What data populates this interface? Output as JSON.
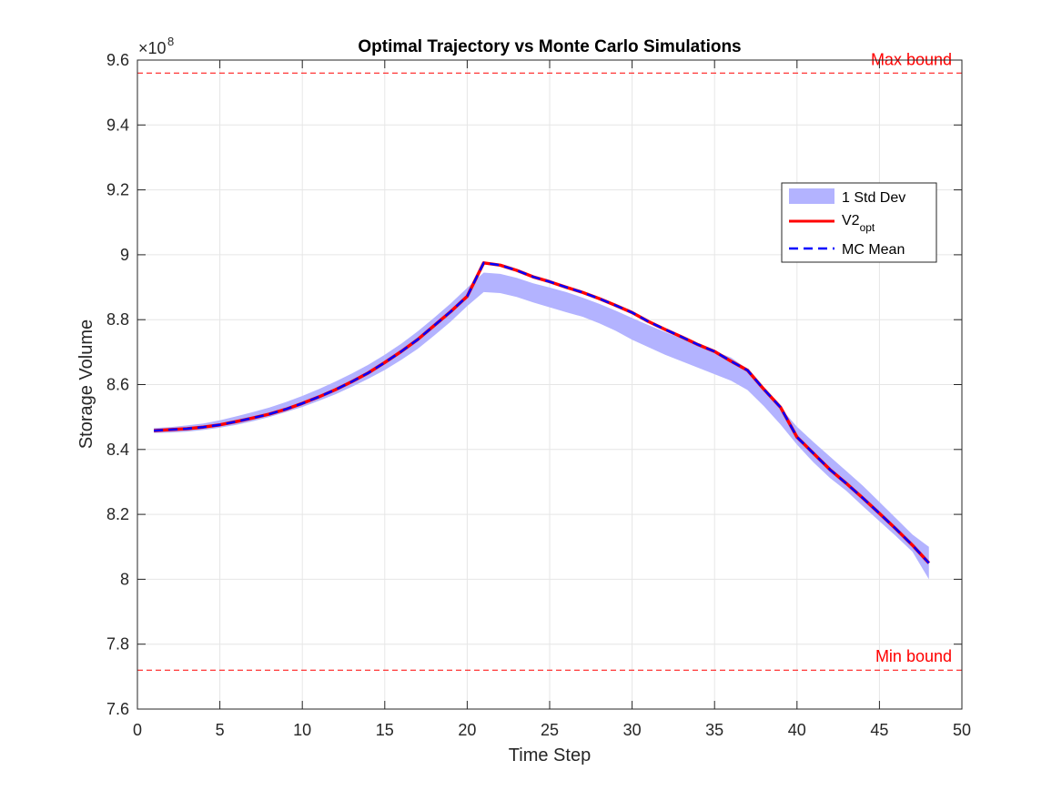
{
  "chart_data": {
    "type": "line",
    "title": "Optimal Trajectory vs Monte Carlo Simulations",
    "xlabel": "Time Step",
    "ylabel": "Storage Volume",
    "exponent_label": {
      "base": "×10",
      "power": "8"
    },
    "xlim": [
      0,
      50
    ],
    "ylim": [
      7.6,
      9.6
    ],
    "xticks": [
      0,
      5,
      10,
      15,
      20,
      25,
      30,
      35,
      40,
      45,
      50
    ],
    "yticks": [
      7.6,
      7.8,
      8,
      8.2,
      8.4,
      8.6,
      8.8,
      9,
      9.2,
      9.4,
      9.6
    ],
    "ytick_labels": [
      "7.6",
      "7.8",
      "8",
      "8.2",
      "8.4",
      "8.6",
      "8.8",
      "9",
      "9.2",
      "9.4",
      "9.6"
    ],
    "grid": true,
    "legend_position": "right",
    "x": [
      1,
      2,
      3,
      4,
      5,
      6,
      7,
      8,
      9,
      10,
      11,
      12,
      13,
      14,
      15,
      16,
      17,
      18,
      19,
      20,
      21,
      22,
      23,
      24,
      25,
      26,
      27,
      28,
      29,
      30,
      31,
      32,
      33,
      34,
      35,
      36,
      37,
      38,
      39,
      40,
      41,
      42,
      43,
      44,
      45,
      46,
      47,
      48
    ],
    "series": [
      {
        "name": "1 Std Dev",
        "kind": "band",
        "color": "#b3b3ff",
        "lower": [
          8.451,
          8.452,
          8.455,
          8.46,
          8.467,
          8.476,
          8.487,
          8.5,
          8.515,
          8.531,
          8.55,
          8.57,
          8.593,
          8.618,
          8.645,
          8.676,
          8.71,
          8.751,
          8.794,
          8.842,
          8.885,
          8.882,
          8.87,
          8.853,
          8.838,
          8.823,
          8.809,
          8.789,
          8.766,
          8.738,
          8.715,
          8.692,
          8.672,
          8.652,
          8.632,
          8.612,
          8.583,
          8.533,
          8.477,
          8.415,
          8.36,
          8.312,
          8.272,
          8.225,
          8.179,
          8.133,
          8.085,
          8.0
        ],
        "upper": [
          8.466,
          8.469,
          8.474,
          8.48,
          8.49,
          8.502,
          8.515,
          8.529,
          8.546,
          8.565,
          8.586,
          8.609,
          8.634,
          8.661,
          8.692,
          8.726,
          8.764,
          8.806,
          8.85,
          8.898,
          8.945,
          8.941,
          8.929,
          8.912,
          8.899,
          8.885,
          8.868,
          8.849,
          8.828,
          8.805,
          8.783,
          8.762,
          8.742,
          8.722,
          8.703,
          8.683,
          8.648,
          8.588,
          8.528,
          8.47,
          8.423,
          8.378,
          8.333,
          8.288,
          8.238,
          8.188,
          8.138,
          8.1
        ]
      },
      {
        "name": "V2opt",
        "legend_main": "V2",
        "legend_sub": "opt",
        "kind": "line",
        "color": "#ff0000",
        "values": [
          8.458,
          8.461,
          8.464,
          8.469,
          8.476,
          8.486,
          8.497,
          8.509,
          8.524,
          8.542,
          8.562,
          8.584,
          8.609,
          8.636,
          8.668,
          8.702,
          8.739,
          8.782,
          8.825,
          8.872,
          8.975,
          8.968,
          8.952,
          8.932,
          8.917,
          8.9,
          8.884,
          8.865,
          8.844,
          8.822,
          8.794,
          8.77,
          8.747,
          8.723,
          8.702,
          8.672,
          8.644,
          8.585,
          8.53,
          8.438,
          8.388,
          8.338,
          8.295,
          8.25,
          8.203,
          8.155,
          8.105,
          8.05
        ]
      },
      {
        "name": "MC Mean",
        "kind": "dashed-line",
        "color": "#0000ff",
        "values": [
          8.458,
          8.461,
          8.464,
          8.469,
          8.476,
          8.486,
          8.497,
          8.509,
          8.524,
          8.542,
          8.562,
          8.584,
          8.609,
          8.636,
          8.668,
          8.702,
          8.739,
          8.782,
          8.825,
          8.872,
          8.975,
          8.968,
          8.952,
          8.932,
          8.917,
          8.9,
          8.884,
          8.865,
          8.844,
          8.822,
          8.794,
          8.77,
          8.747,
          8.723,
          8.702,
          8.672,
          8.644,
          8.585,
          8.53,
          8.438,
          8.388,
          8.338,
          8.295,
          8.25,
          8.203,
          8.155,
          8.105,
          8.05
        ]
      }
    ],
    "reference_lines": [
      {
        "label": "Max bound",
        "value": 9.56,
        "color": "#ff0000"
      },
      {
        "label": "Min bound",
        "value": 7.72,
        "color": "#ff0000"
      }
    ]
  }
}
